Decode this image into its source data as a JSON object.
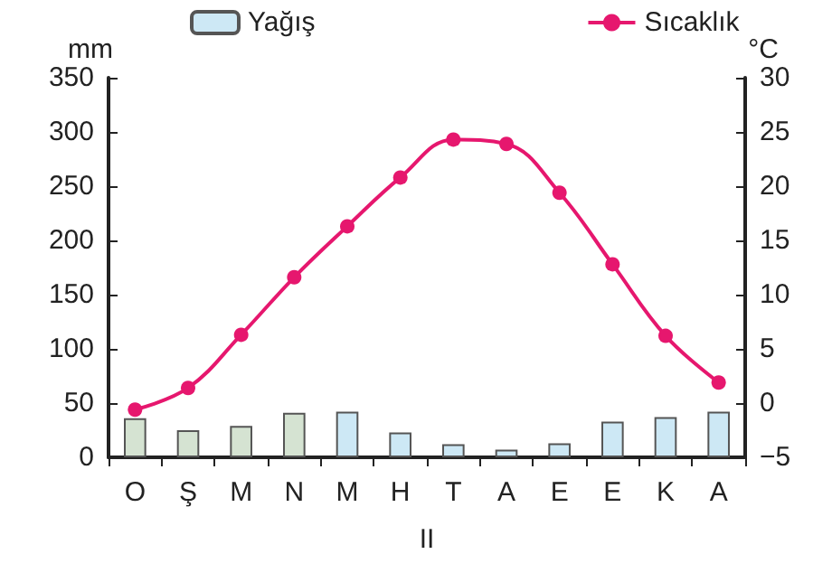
{
  "chart_data": {
    "type": "bar",
    "categories": [
      "O",
      "Ş",
      "M",
      "N",
      "M",
      "H",
      "T",
      "A",
      "E",
      "E",
      "K",
      "A"
    ],
    "xlabel": "II",
    "ylabel": "mm",
    "y2label": "°C",
    "series": [
      {
        "name": "Yağış",
        "color": "#cde8f5",
        "colors": [
          "#d5e3d2",
          "#d5e3d2",
          "#d5e3d2",
          "#d5e3d2",
          "#cde8f5",
          "#cde8f5",
          "#cde8f5",
          "#cde8f5",
          "#cde8f5",
          "#cde8f5",
          "#cde8f5",
          "#cde8f5"
        ],
        "values": [
          36,
          25,
          29,
          41,
          42,
          23,
          12,
          7,
          13,
          33,
          37,
          42
        ]
      },
      {
        "name": "Sıcaklık",
        "type": "line",
        "axis": "y2",
        "color": "#e6176e",
        "values": [
          -0.6,
          1.4,
          6.3,
          11.6,
          16.3,
          20.8,
          24.3,
          23.9,
          19.4,
          12.8,
          6.2,
          1.9
        ]
      }
    ],
    "ylim": [
      0,
      350
    ],
    "yticks": [
      0,
      50,
      100,
      150,
      200,
      250,
      300,
      350
    ],
    "y2lim": [
      -5,
      30
    ],
    "y2ticks": [
      {
        "value": -5,
        "label": "−5"
      },
      0,
      5,
      10,
      15,
      20,
      25,
      30
    ],
    "legend": "top",
    "marker": "circle",
    "grid": false
  }
}
